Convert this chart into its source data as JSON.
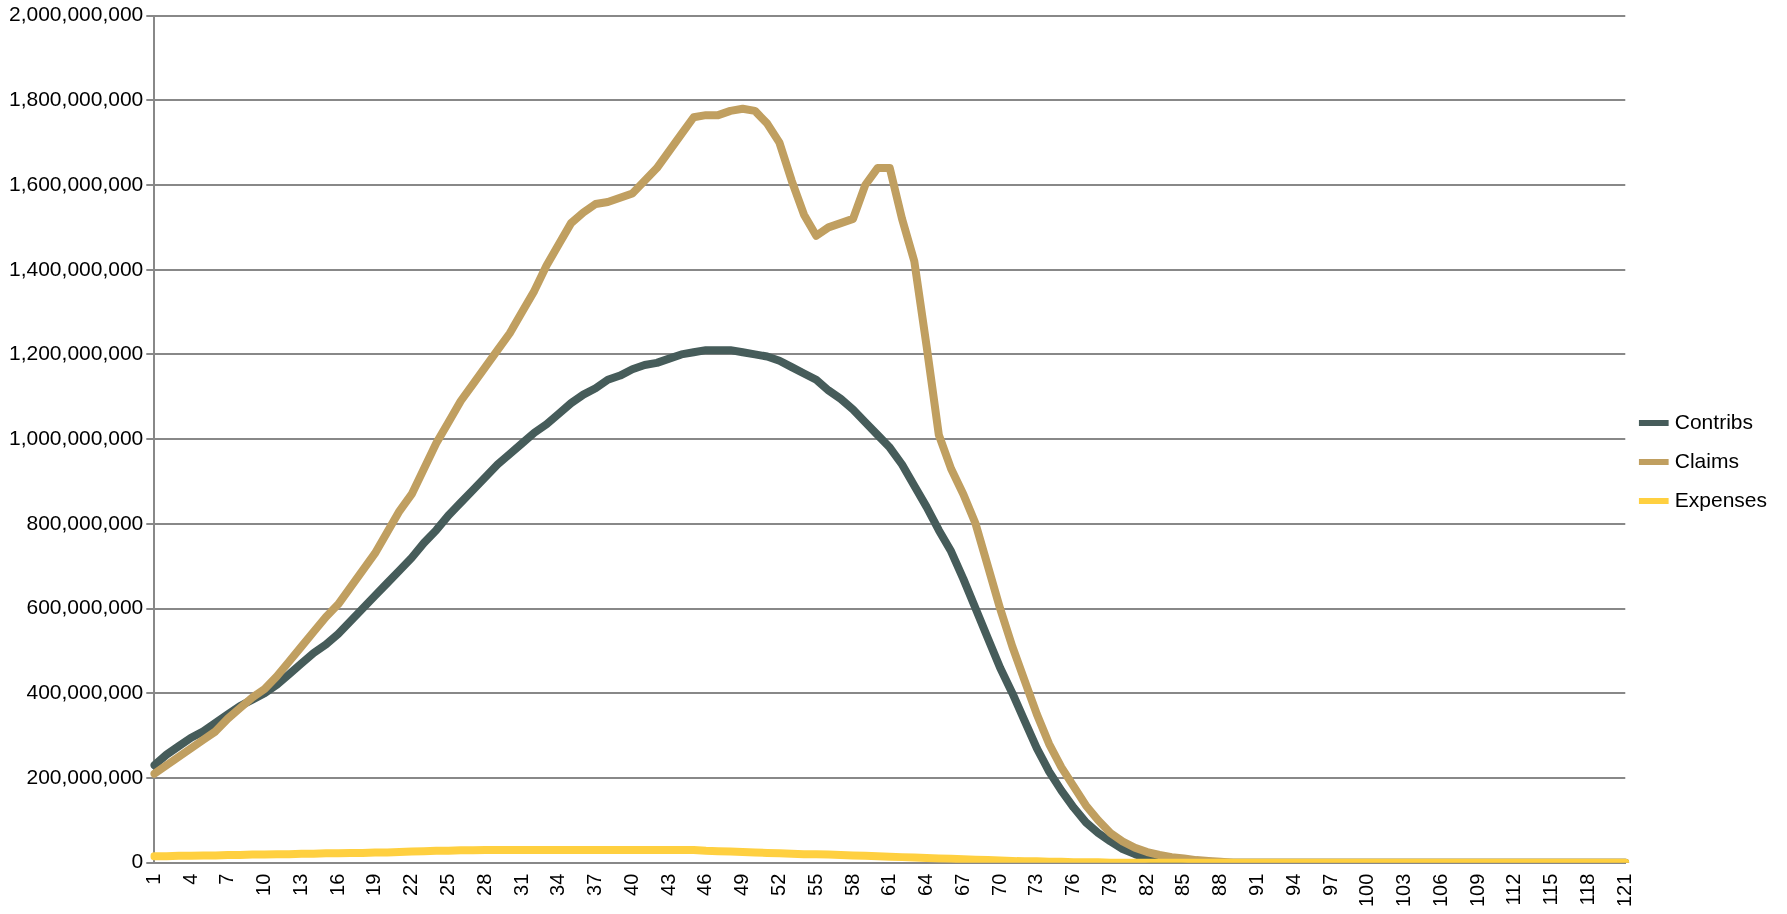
{
  "chart_data": {
    "type": "line",
    "categories": [
      "1",
      null,
      null,
      "4",
      null,
      null,
      "7",
      null,
      null,
      "10",
      null,
      null,
      "13",
      null,
      null,
      "16",
      null,
      null,
      "19",
      null,
      null,
      "22",
      null,
      null,
      "25",
      null,
      null,
      "28",
      null,
      null,
      "31",
      null,
      null,
      "34",
      null,
      null,
      "37",
      null,
      null,
      "40",
      null,
      null,
      "43",
      null,
      null,
      "46",
      null,
      null,
      "49",
      null,
      null,
      "52",
      null,
      null,
      "55",
      null,
      null,
      "58",
      null,
      null,
      "61",
      null,
      null,
      "64",
      null,
      null,
      "67",
      null,
      null,
      "70",
      null,
      null,
      "73",
      null,
      null,
      "76",
      null,
      null,
      "79",
      null,
      null,
      "82",
      null,
      null,
      "85",
      null,
      null,
      "88",
      null,
      null,
      "91",
      null,
      null,
      "94",
      null,
      null,
      "97",
      null,
      null,
      "100",
      null,
      null,
      "103",
      null,
      null,
      "106",
      null,
      null,
      "109",
      null,
      null,
      "112",
      null,
      null,
      "115",
      null,
      null,
      "118",
      null,
      null,
      "121"
    ],
    "series": [
      {
        "name": "Contribs",
        "color": "#465c5a",
        "values": [
          230000000.0,
          255000000.0,
          275000000.0,
          295000000.0,
          310000000.0,
          330000000.0,
          350000000.0,
          370000000.0,
          385000000.0,
          400000000.0,
          420000000.0,
          445000000.0,
          470000000.0,
          495000000.0,
          515000000.0,
          540000000.0,
          570000000.0,
          600000000.0,
          630000000.0,
          660000000.0,
          690000000.0,
          720000000.0,
          755000000.0,
          785000000.0,
          820000000.0,
          850000000.0,
          880000000.0,
          910000000.0,
          940000000.0,
          965000000.0,
          990000000.0,
          1015000000.0,
          1035000000.0,
          1060000000.0,
          1085000000.0,
          1105000000.0,
          1120000000.0,
          1140000000.0,
          1150000000.0,
          1165000000.0,
          1175000000.0,
          1180000000.0,
          1190000000.0,
          1200000000.0,
          1205000000.0,
          1210000000.0,
          1210000000.0,
          1210000000.0,
          1205000000.0,
          1200000000.0,
          1195000000.0,
          1185000000.0,
          1170000000.0,
          1155000000.0,
          1140000000.0,
          1115000000.0,
          1095000000.0,
          1070000000.0,
          1040000000.0,
          1010000000.0,
          980000000.0,
          940000000.0,
          890000000.0,
          840000000.0,
          785000000.0,
          735000000.0,
          670000000.0,
          600000000.0,
          530000000.0,
          460000000.0,
          400000000.0,
          335000000.0,
          270000000.0,
          215000000.0,
          170000000.0,
          130000000.0,
          95000000.0,
          70000000.0,
          50000000.0,
          32000000.0,
          20000000.0,
          10000000.0,
          5000000.0,
          3000000.0,
          2000000.0,
          0,
          0,
          0,
          0,
          0,
          0,
          0,
          0,
          0,
          0,
          0,
          0,
          0,
          0,
          0,
          0,
          0,
          0,
          0,
          0,
          0,
          0,
          0,
          0,
          0,
          0,
          0,
          0,
          0,
          0,
          0,
          0,
          0,
          0,
          0,
          0
        ]
      },
      {
        "name": "Claims",
        "color": "#c09f60",
        "values": [
          210000000.0,
          230000000.0,
          250000000.0,
          270000000.0,
          290000000.0,
          310000000.0,
          340000000.0,
          365000000.0,
          390000000.0,
          410000000.0,
          440000000.0,
          475000000.0,
          510000000.0,
          545000000.0,
          580000000.0,
          610000000.0,
          650000000.0,
          690000000.0,
          730000000.0,
          780000000.0,
          830000000.0,
          870000000.0,
          930000000.0,
          990000000.0,
          1040000000.0,
          1090000000.0,
          1130000000.0,
          1170000000.0,
          1210000000.0,
          1250000000.0,
          1300000000.0,
          1350000000.0,
          1410000000.0,
          1460000000.0,
          1510000000.0,
          1535000000.0,
          1555000000.0,
          1560000000.0,
          1570000000.0,
          1580000000.0,
          1610000000.0,
          1640000000.0,
          1680000000.0,
          1720000000.0,
          1760000000.0,
          1765000000.0,
          1765000000.0,
          1775000000.0,
          1780000000.0,
          1775000000.0,
          1745000000.0,
          1700000000.0,
          1610000000.0,
          1530000000.0,
          1480000000.0,
          1500000000.0,
          1510000000.0,
          1520000000.0,
          1600000000.0,
          1640000000.0,
          1640000000.0,
          1520000000.0,
          1420000000.0,
          1220000000.0,
          1010000000.0,
          930000000.0,
          870000000.0,
          800000000.0,
          700000000.0,
          600000000.0,
          510000000.0,
          430000000.0,
          350000000.0,
          280000000.0,
          225000000.0,
          180000000.0,
          135000000.0,
          100000000.0,
          70000000.0,
          50000000.0,
          35000000.0,
          25000000.0,
          18000000.0,
          13000000.0,
          10000000.0,
          6000000.0,
          4000000.0,
          2000000.0,
          0,
          0,
          0,
          0,
          0,
          0,
          0,
          0,
          0,
          0,
          0,
          0,
          0,
          0,
          0,
          0,
          0,
          0,
          0,
          0,
          0,
          0,
          0,
          0,
          0,
          0,
          0,
          0,
          0,
          0,
          0,
          0,
          0
        ]
      },
      {
        "name": "Expenses",
        "color": "#ffd040",
        "values": [
          15000000.0,
          15000000.0,
          16000000.0,
          16000000.0,
          17000000.0,
          17000000.0,
          18000000.0,
          18000000.0,
          19000000.0,
          19000000.0,
          20000000.0,
          20000000.0,
          21000000.0,
          21000000.0,
          22000000.0,
          22000000.0,
          23000000.0,
          23000000.0,
          24000000.0,
          24000000.0,
          25000000.0,
          26000000.0,
          27000000.0,
          28000000.0,
          28000000.0,
          29000000.0,
          29000000.0,
          30000000.0,
          30000000.0,
          30000000.0,
          30000000.0,
          30000000.0,
          30000000.0,
          30000000.0,
          30000000.0,
          30000000.0,
          30000000.0,
          30000000.0,
          30000000.0,
          30000000.0,
          30000000.0,
          30000000.0,
          30000000.0,
          30000000.0,
          30000000.0,
          28000000.0,
          27000000.0,
          26000000.0,
          25000000.0,
          24000000.0,
          23000000.0,
          22000000.0,
          21000000.0,
          20000000.0,
          20000000.0,
          19000000.0,
          18000000.0,
          17000000.0,
          16000000.0,
          15000000.0,
          14000000.0,
          13000000.0,
          12000000.0,
          11000000.0,
          10000000.0,
          9000000.0,
          8000000.0,
          7000000.0,
          6000000.0,
          5000000.0,
          4000000.0,
          3000000.0,
          3000000.0,
          2000000.0,
          2000000.0,
          1000000.0,
          1000000.0,
          1000000.0,
          0,
          0,
          0,
          0,
          0,
          0,
          0,
          0,
          0,
          0,
          0,
          0,
          0,
          0,
          0,
          0,
          0,
          0,
          0,
          0,
          0,
          0,
          0,
          0,
          0,
          0,
          0,
          0,
          0,
          0,
          0,
          0,
          0,
          0,
          0,
          0,
          0,
          0,
          0,
          0,
          0,
          0,
          0
        ]
      }
    ],
    "ylim": [
      0,
      2000000000
    ],
    "yticks": [
      0,
      {
        "value": 200000000,
        "label": "200,000,000"
      },
      {
        "value": 400000000,
        "label": "400,000,000"
      },
      {
        "value": 600000000,
        "label": "600,000,000"
      },
      {
        "value": 800000000,
        "label": "800,000,000"
      },
      {
        "value": 1000000000,
        "label": "1,000,000,000"
      },
      {
        "value": 1200000000,
        "label": "1,200,000,000"
      },
      {
        "value": 1400000000,
        "label": "1,400,000,000"
      },
      {
        "value": 1600000000,
        "label": "1,600,000,000"
      },
      {
        "value": 1800000000,
        "label": "1,800,000,000"
      },
      {
        "value": 2000000000,
        "label": "2,000,000,000"
      }
    ],
    "grid": "y",
    "legend": "right",
    "marker": "none",
    "line_style": "solid"
  }
}
